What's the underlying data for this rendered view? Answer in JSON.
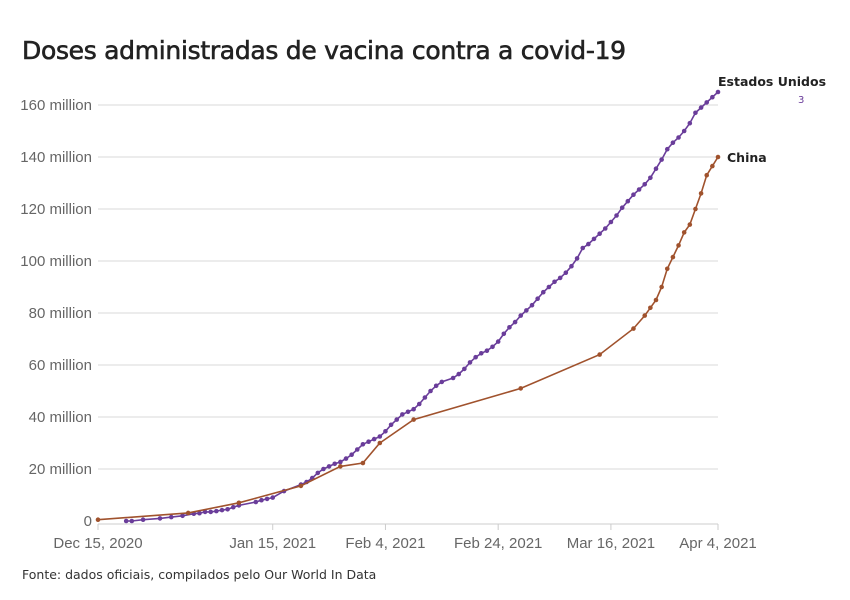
{
  "chart_data": {
    "type": "line",
    "title": "Doses administradas de vacina contra a covid-19",
    "source": "Fonte: dados oficiais, compilados pelo Our World In Data",
    "x_unit": "days since Dec 15, 2020",
    "xlim": [
      0,
      110
    ],
    "ylim": [
      0,
      165
    ],
    "grid": true,
    "x_ticks": [
      {
        "value": 0,
        "label": "Dec 15, 2020"
      },
      {
        "value": 31,
        "label": "Jan 15, 2021"
      },
      {
        "value": 51,
        "label": "Feb 4, 2021"
      },
      {
        "value": 71,
        "label": "Feb 24, 2021"
      },
      {
        "value": 91,
        "label": "Mar 16, 2021"
      },
      {
        "value": 110,
        "label": "Apr 4, 2021"
      }
    ],
    "y_ticks": [
      {
        "value": 0,
        "label": "0"
      },
      {
        "value": 20,
        "label": "20 million"
      },
      {
        "value": 40,
        "label": "40 million"
      },
      {
        "value": 60,
        "label": "60 million"
      },
      {
        "value": 80,
        "label": "80 million"
      },
      {
        "value": 100,
        "label": "100 million"
      },
      {
        "value": 120,
        "label": "120 million"
      },
      {
        "value": 140,
        "label": "140 million"
      },
      {
        "value": 160,
        "label": "160 million"
      }
    ],
    "annotation": "3",
    "series": [
      {
        "name": "Estados Unidos",
        "color": "#6a3d9a",
        "x": [
          5,
          6,
          8,
          11,
          13,
          15,
          17,
          18,
          19,
          20,
          21,
          22,
          23,
          24,
          25,
          28,
          29,
          30,
          31,
          33,
          36,
          37,
          38,
          39,
          40,
          41,
          42,
          43,
          44,
          45,
          46,
          47,
          48,
          49,
          50,
          51,
          52,
          53,
          54,
          55,
          56,
          57,
          58,
          59,
          60,
          61,
          63,
          64,
          65,
          66,
          67,
          68,
          69,
          70,
          71,
          72,
          73,
          74,
          75,
          76,
          77,
          78,
          79,
          80,
          81,
          82,
          83,
          84,
          85,
          86,
          87,
          88,
          89,
          90,
          91,
          92,
          93,
          94,
          95,
          96,
          97,
          98,
          99,
          100,
          101,
          102,
          103,
          104,
          105,
          106,
          107,
          108,
          109,
          110
        ],
        "y": [
          0,
          0,
          0.5,
          1,
          1.5,
          2,
          2.8,
          3,
          3.5,
          3.5,
          3.8,
          4.2,
          4.5,
          5.3,
          6,
          7.3,
          8,
          8.5,
          9,
          11.5,
          14,
          15,
          16.5,
          18.5,
          20,
          21,
          22,
          22.7,
          24,
          25.5,
          27.5,
          29.5,
          30.5,
          31.5,
          32.5,
          34.5,
          37,
          39,
          41,
          42,
          43,
          45,
          47.5,
          50,
          52,
          53.5,
          55,
          56.5,
          58.5,
          61,
          63,
          64.5,
          65.5,
          67,
          69,
          72,
          74.5,
          76.5,
          79,
          81,
          83,
          85.5,
          88,
          90,
          92,
          93.5,
          95.5,
          98,
          101,
          105,
          106.5,
          108.5,
          110.5,
          112.5,
          115,
          117.5,
          120.5,
          123,
          125.5,
          127.5,
          129.5,
          132,
          135.5,
          139,
          143,
          145.5,
          147.5,
          150,
          153,
          157,
          159,
          161,
          163,
          165
        ]
      },
      {
        "name": "China",
        "color": "#a0522d",
        "x": [
          0,
          16,
          25,
          36,
          43,
          47,
          50,
          56,
          75,
          89,
          95,
          97,
          98,
          99,
          100,
          101,
          102,
          103,
          104,
          105,
          106,
          107,
          108,
          109,
          110
        ],
        "y": [
          0.5,
          3.1,
          7,
          13.5,
          21,
          22.3,
          30,
          39,
          51,
          64,
          74,
          79,
          82,
          85,
          90,
          97,
          101.5,
          106,
          111,
          114,
          120,
          126,
          133,
          136.5,
          140
        ]
      }
    ]
  }
}
